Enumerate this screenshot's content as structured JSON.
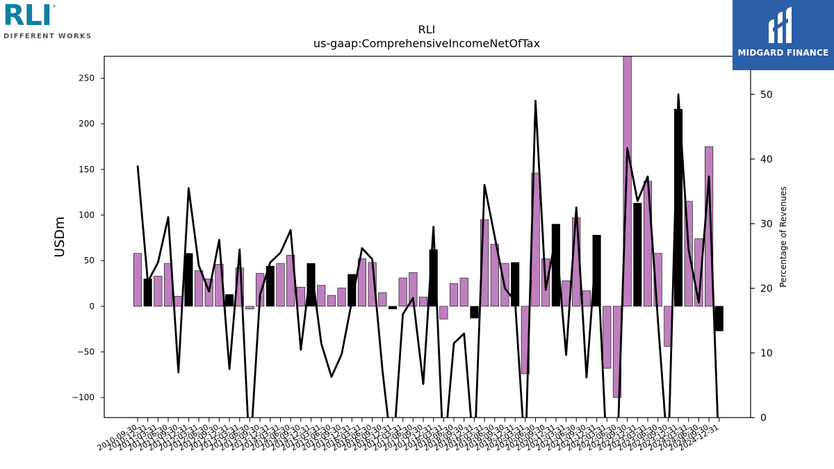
{
  "logos": {
    "left": {
      "brand": "RLI",
      "tagline": "DIFFERENT WORKS",
      "reg": "®",
      "color": "#0e7fa0"
    },
    "right": {
      "name": "MIDGARD FINANCE",
      "color": "#2b5fa8"
    }
  },
  "chart_data": {
    "type": "bar",
    "title": "RLI",
    "subtitle": "us-gaap:ComprehensiveIncomeNetOfTax",
    "ylabel": "USDm",
    "y2label": "Percentage of Revenues",
    "ylim": [
      -122,
      274
    ],
    "y2lim": [
      0,
      55.9
    ],
    "yticks": [
      -100,
      -50,
      0,
      50,
      100,
      150,
      200,
      250
    ],
    "y2ticks": [
      0,
      10,
      20,
      30,
      40,
      50
    ],
    "colors": {
      "quarter": "#bf7fbf",
      "annual": "#000000",
      "line": "#000000"
    },
    "categories": [
      "2010-09-30",
      "2010-12-31",
      "2011-03-31",
      "2011-06-30",
      "2011-09-30",
      "2011-12-31",
      "2012-03-31",
      "2012-06-30",
      "2012-09-30",
      "2012-12-31",
      "2013-03-31",
      "2013-06-30",
      "2013-09-30",
      "2013-12-31",
      "2014-03-31",
      "2014-06-30",
      "2014-09-30",
      "2014-12-31",
      "2015-03-31",
      "2015-06-30",
      "2015-09-30",
      "2015-12-31",
      "2016-03-31",
      "2016-06-30",
      "2016-09-30",
      "2016-12-31",
      "2017-03-31",
      "2017-06-30",
      "2017-09-30",
      "2017-12-31",
      "2018-03-31",
      "2018-06-30",
      "2018-09-30",
      "2018-12-31",
      "2019-03-31",
      "2019-06-30",
      "2019-09-30",
      "2019-12-31",
      "2020-03-31",
      "2020-06-30",
      "2020-09-30",
      "2020-12-31",
      "2021-03-31",
      "2021-06-30",
      "2021-09-30",
      "2021-12-31",
      "2022-03-31",
      "2022-06-30",
      "2022-09-30",
      "2022-12-31",
      "2023-03-31",
      "2023-06-30",
      "2023-09-30",
      "2023-12-31",
      "2024-03-31",
      "2024-06-30",
      "2024-09-30",
      "2024-12-31"
    ],
    "tick_labels": [
      "2010-09-30",
      "2010-12-31",
      "2011-03-31",
      "2011-06-30",
      "2011-09-30",
      "2011-12-31",
      "2012-03-31",
      "2012-06-30",
      "2012-09-30",
      "2012-12-31",
      "2013-03-31",
      "2013-06-30",
      "2013-09-30",
      "2013-12-31",
      "2014-03-31",
      "2014-06-30",
      "2014-09-30",
      "2014-12-31",
      "2015-03-31",
      "2015-06-30",
      "2015-09-30",
      "2015-12-31",
      "2016-03-31",
      "2016-06-30",
      "2016-09-30",
      "2016-12-31",
      "2017-03-31",
      "2017-06-30",
      "2017-09-30",
      "2017-12-31",
      "2018-03-31",
      "2018-06-30",
      "2018-09-30",
      "2018-12-31",
      "2019-03-31",
      "2019-06-30",
      "2019-09-30",
      "2019-12-31",
      "2020-03-31",
      "2020-06-30",
      "2020-09-30",
      "2020-12-31",
      "2021-03-31",
      "2021-06-30",
      "2021-09-30",
      "2021-12-31",
      "2022-03-31",
      "2022-06-30",
      "2022-09-30",
      "2022-12-31",
      "2023-03-31",
      "2023-06-30",
      "2023-09-30",
      "2023-12-31",
      "2024-03-31",
      "2024-06-30",
      "2024-09-30",
      "2024-12-31"
    ],
    "values": [
      58,
      30,
      33,
      47,
      11,
      58,
      39,
      30,
      46,
      13,
      42,
      -3,
      36,
      44,
      47,
      56,
      21,
      47,
      23,
      12,
      20,
      35,
      52,
      48,
      15,
      -3,
      31,
      37,
      10,
      62,
      -14,
      25,
      31,
      -13,
      95,
      68,
      47,
      48,
      -74,
      146,
      52,
      90,
      28,
      97,
      17,
      78,
      -68,
      -100,
      274,
      113,
      137,
      58,
      -44,
      216,
      115,
      74,
      175,
      -27
    ],
    "annual": [
      false,
      true,
      false,
      false,
      false,
      true,
      false,
      false,
      false,
      true,
      false,
      false,
      false,
      true,
      false,
      false,
      false,
      true,
      false,
      false,
      false,
      true,
      false,
      false,
      false,
      true,
      false,
      false,
      false,
      true,
      false,
      false,
      false,
      true,
      false,
      false,
      false,
      true,
      false,
      false,
      false,
      true,
      false,
      false,
      false,
      true,
      false,
      false,
      false,
      true,
      false,
      false,
      false,
      true,
      false,
      false,
      false,
      true
    ],
    "pct_of_revenues": [
      39,
      21,
      24,
      31,
      7,
      35.5,
      23.5,
      19.5,
      27.5,
      7.5,
      26,
      0,
      19,
      24,
      25.5,
      29,
      10.5,
      23.5,
      11.5,
      6.3,
      9.8,
      18,
      26.2,
      24.5,
      7.3,
      0,
      16,
      18.5,
      5.2,
      29.5,
      0,
      11.5,
      13,
      0,
      36,
      28,
      20,
      18,
      0,
      49,
      19.8,
      28,
      9.7,
      32.5,
      6.2,
      27.5,
      0,
      0,
      41.7,
      33.5,
      37.3,
      15,
      0,
      50,
      26,
      17.8,
      37.3,
      0
    ]
  }
}
